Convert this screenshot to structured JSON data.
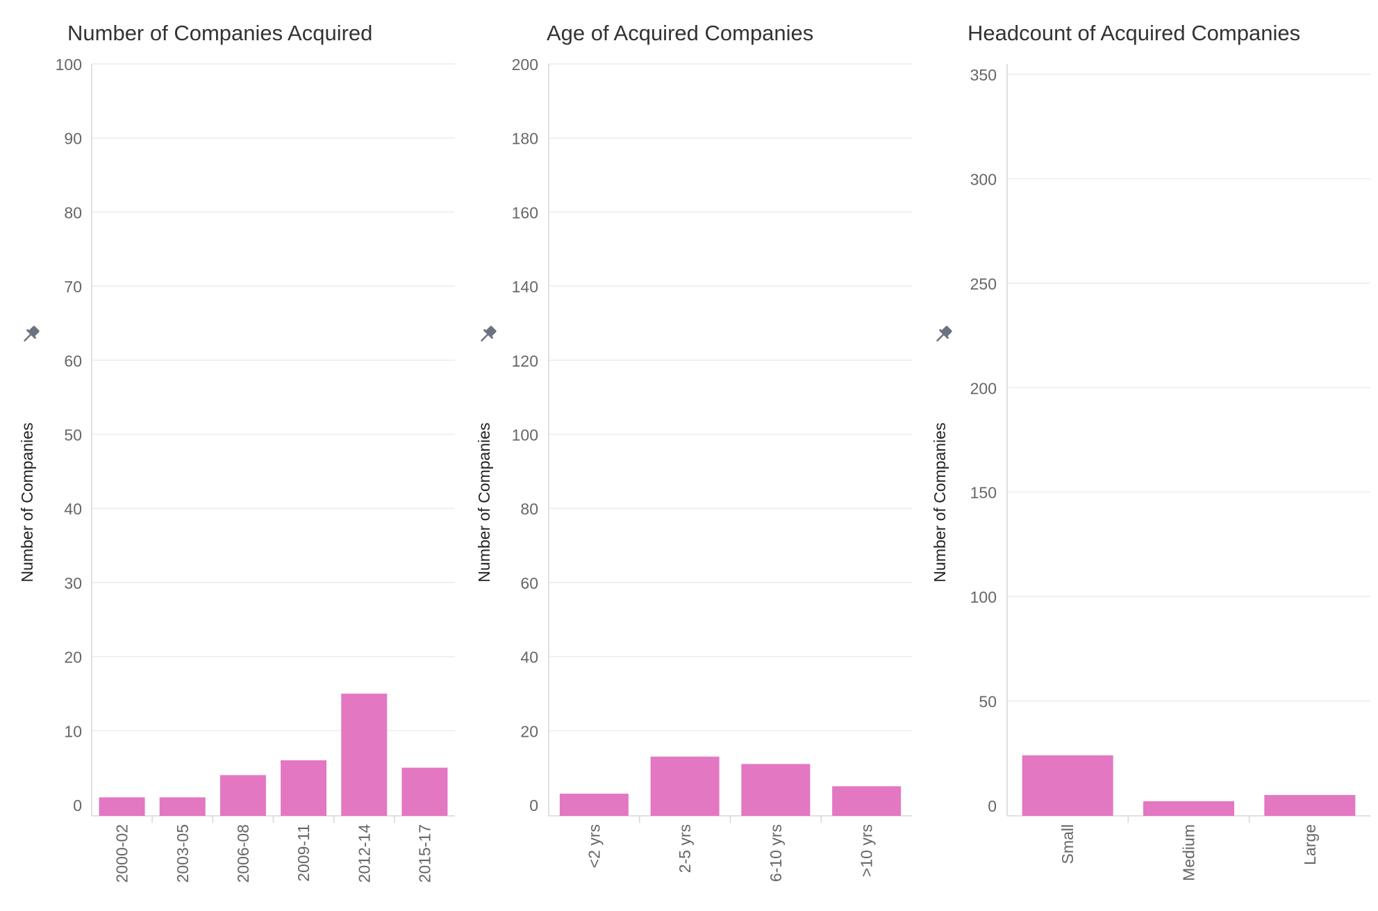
{
  "colors": {
    "bar": "#e377c2",
    "grid": "#ececec",
    "axis": "#d6d6d6",
    "title": "#333333",
    "tick": "#666666",
    "ylabel": "#222222",
    "pin": "#6b7280"
  },
  "icons": {
    "pin": "pin-icon"
  },
  "chart_data": [
    {
      "type": "bar",
      "title": "Number of Companies Acquired",
      "xlabel": "",
      "ylabel": "Number of Companies",
      "categories": [
        "2000-02",
        "2003-05",
        "2006-08",
        "2009-11",
        "2012-14",
        "2015-17"
      ],
      "values": [
        1,
        1,
        4,
        6,
        15,
        5
      ],
      "ylim": [
        -1.5,
        100
      ],
      "yticks": [
        0,
        10,
        20,
        30,
        40,
        50,
        60,
        70,
        80,
        90,
        100
      ],
      "yticklabels": [
        "0",
        "10",
        "20",
        "30",
        "40",
        "50",
        "60",
        "70",
        "80",
        "90",
        "100"
      ],
      "grid": true
    },
    {
      "type": "bar",
      "title": "Age of Acquired Companies",
      "xlabel": "",
      "ylabel": "Number of Companies",
      "categories": [
        "<2 yrs",
        "2-5 yrs",
        "6-10 yrs",
        ">10 yrs"
      ],
      "values": [
        3,
        13,
        11,
        5
      ],
      "ylim": [
        -3,
        200
      ],
      "yticks": [
        0,
        20,
        40,
        60,
        80,
        100,
        120,
        140,
        160,
        180,
        200
      ],
      "yticklabels": [
        "0",
        "20",
        "40",
        "60",
        "80",
        "100",
        "120",
        "140",
        "160",
        "180",
        "200"
      ],
      "grid": true
    },
    {
      "type": "bar",
      "title": "Headcount of Acquired Companies",
      "xlabel": "",
      "ylabel": "Number of Companies",
      "categories": [
        "Small",
        "Medium",
        "Large"
      ],
      "values": [
        24,
        2,
        5
      ],
      "ylim": [
        -5,
        355
      ],
      "yticks": [
        0,
        50,
        100,
        150,
        200,
        250,
        300,
        350
      ],
      "yticklabels": [
        "0",
        "50",
        "100",
        "150",
        "200",
        "250",
        "300",
        "350"
      ],
      "grid": true
    }
  ]
}
